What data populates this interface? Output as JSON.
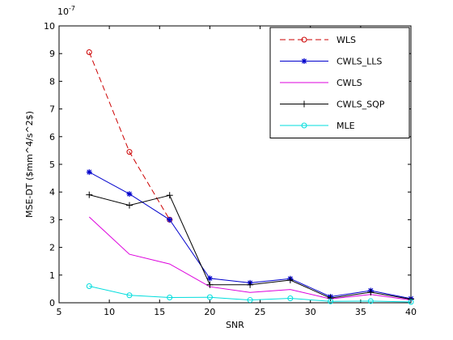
{
  "chart_data": {
    "type": "line",
    "xlabel": "SNR",
    "ylabel": "MSE-DT ($mm^4/s^2$)",
    "exponent": "10^{-7}",
    "xlim": [
      5,
      40
    ],
    "ylim": [
      0,
      10
    ],
    "xticks": [
      "5",
      "10",
      "15",
      "20",
      "25",
      "30",
      "35",
      "40"
    ],
    "yticks": [
      "0",
      "1",
      "2",
      "3",
      "4",
      "5",
      "6",
      "7",
      "8",
      "9",
      "10"
    ],
    "grid": false,
    "legend_position": "top-right",
    "series": [
      {
        "name": "WLS",
        "color": "#cc0000",
        "dash": "dashed",
        "marker": "circle",
        "x": [
          8,
          12,
          16
        ],
        "y": [
          9.05,
          5.45,
          3.0
        ]
      },
      {
        "name": "CWLS_LLS",
        "color": "#0000cc",
        "dash": "solid",
        "marker": "star",
        "x": [
          8,
          12,
          16,
          20,
          24,
          28,
          32,
          36,
          40
        ],
        "y": [
          4.72,
          3.93,
          3.0,
          0.88,
          0.72,
          0.87,
          0.22,
          0.44,
          0.15
        ]
      },
      {
        "name": "CWLS",
        "color": "#dd00dd",
        "dash": "solid",
        "marker": "none",
        "x": [
          8,
          12,
          16,
          20,
          24,
          28,
          32,
          36,
          40
        ],
        "y": [
          3.1,
          1.75,
          1.4,
          0.58,
          0.37,
          0.48,
          0.14,
          0.3,
          0.1
        ]
      },
      {
        "name": "CWLS_SQP",
        "color": "#000000",
        "dash": "solid",
        "marker": "plus",
        "x": [
          8,
          12,
          16,
          20,
          24,
          28,
          32,
          36,
          40
        ],
        "y": [
          3.9,
          3.52,
          3.88,
          0.65,
          0.65,
          0.82,
          0.17,
          0.38,
          0.13
        ]
      },
      {
        "name": "MLE",
        "color": "#00dddd",
        "dash": "solid",
        "marker": "circle",
        "x": [
          8,
          12,
          16,
          20,
          24,
          28,
          32,
          36,
          40
        ],
        "y": [
          0.6,
          0.27,
          0.19,
          0.2,
          0.1,
          0.16,
          0.05,
          0.06,
          0.03
        ]
      }
    ]
  }
}
